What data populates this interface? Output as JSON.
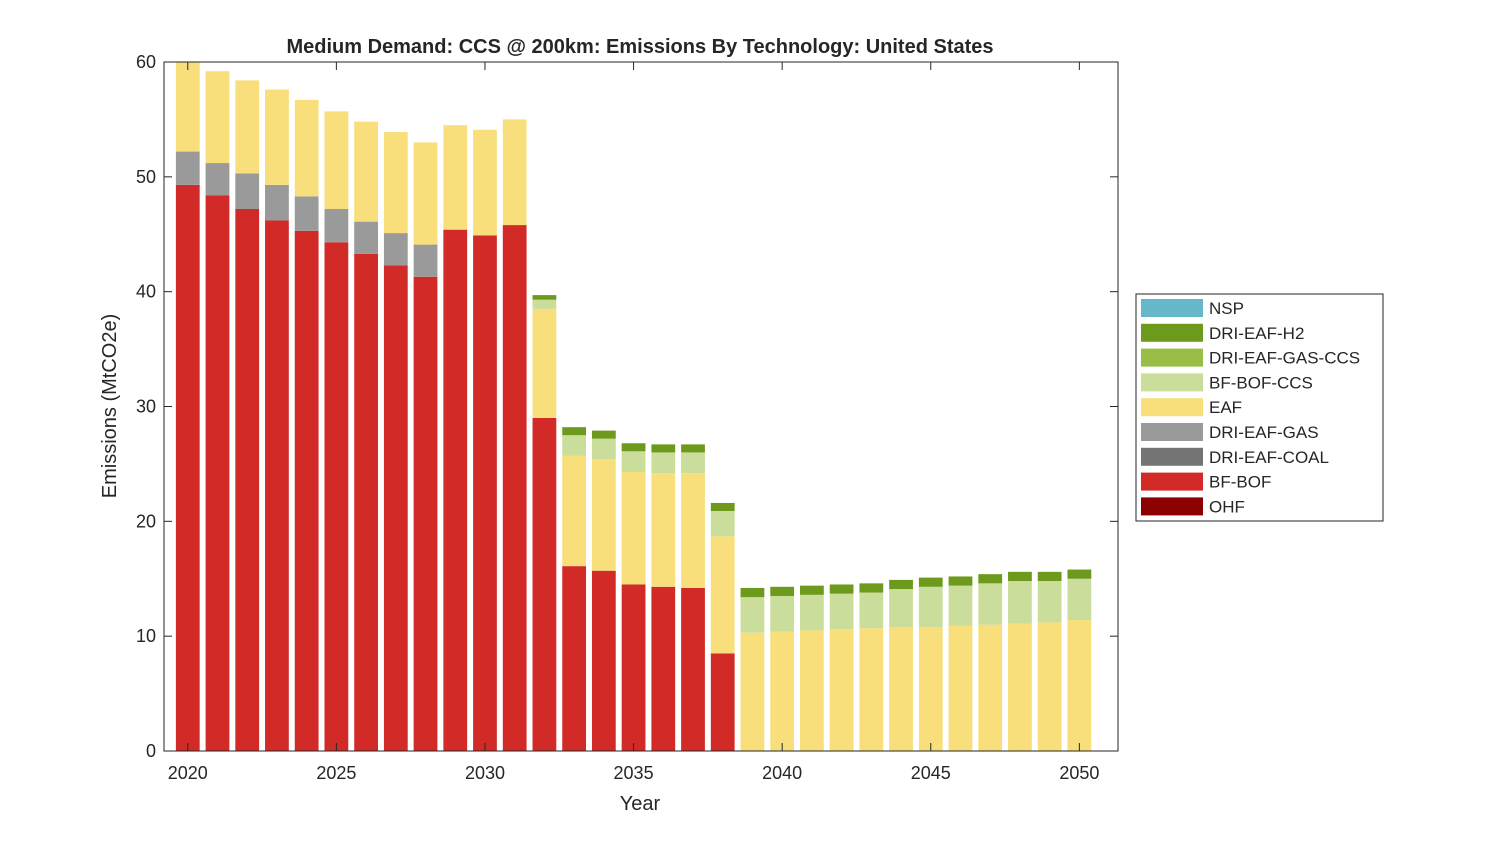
{
  "chart_data": {
    "type": "bar",
    "stacked": true,
    "title": "Medium Demand: CCS @ 200km: Emissions By Technology: United States",
    "xlabel": "Year",
    "ylabel": "Emissions (MtCO2e)",
    "ylim": [
      0,
      60
    ],
    "xlim": [
      2019.2,
      2051.3
    ],
    "xticks": [
      2020,
      2025,
      2030,
      2035,
      2040,
      2045,
      2050
    ],
    "xtick_labels": [
      "2020",
      "2025",
      "2030",
      "2035",
      "2040",
      "2045",
      "2050"
    ],
    "yticks": [
      0,
      10,
      20,
      30,
      40,
      50,
      60
    ],
    "ytick_labels": [
      "0",
      "10",
      "20",
      "30",
      "40",
      "50",
      "60"
    ],
    "grid": false,
    "legend_position": "outside-right",
    "categories": [
      2020,
      2021,
      2022,
      2023,
      2024,
      2025,
      2026,
      2027,
      2028,
      2029,
      2030,
      2031,
      2032,
      2033,
      2034,
      2035,
      2036,
      2037,
      2038,
      2039,
      2040,
      2041,
      2042,
      2043,
      2044,
      2045,
      2046,
      2047,
      2048,
      2049,
      2050
    ],
    "series": [
      {
        "name": "OHF",
        "color": "#8b0000",
        "values": [
          0,
          0,
          0,
          0,
          0,
          0,
          0,
          0,
          0,
          0,
          0,
          0,
          0,
          0,
          0,
          0,
          0,
          0,
          0,
          0,
          0,
          0,
          0,
          0,
          0,
          0,
          0,
          0,
          0,
          0,
          0
        ]
      },
      {
        "name": "BF-BOF",
        "color": "#d22b27",
        "values": [
          49.3,
          48.4,
          47.2,
          46.2,
          45.3,
          44.3,
          43.3,
          42.3,
          41.3,
          45.4,
          44.9,
          45.8,
          29.0,
          16.1,
          15.7,
          14.5,
          14.3,
          14.2,
          8.5,
          0,
          0,
          0,
          0,
          0,
          0,
          0,
          0,
          0,
          0,
          0,
          0
        ]
      },
      {
        "name": "DRI-EAF-COAL",
        "color": "#747474",
        "values": [
          0,
          0,
          0,
          0,
          0,
          0,
          0,
          0,
          0,
          0,
          0,
          0,
          0,
          0,
          0,
          0,
          0,
          0,
          0,
          0,
          0,
          0,
          0,
          0,
          0,
          0,
          0,
          0,
          0,
          0,
          0
        ]
      },
      {
        "name": "DRI-EAF-GAS",
        "color": "#9a9a9a",
        "values": [
          2.9,
          2.8,
          3.1,
          3.1,
          3.0,
          2.9,
          2.8,
          2.8,
          2.8,
          0,
          0,
          0,
          0,
          0,
          0,
          0,
          0,
          0,
          0,
          0,
          0,
          0,
          0,
          0,
          0,
          0,
          0,
          0,
          0,
          0,
          0
        ]
      },
      {
        "name": "EAF",
        "color": "#f8df7c",
        "values": [
          7.9,
          8.0,
          8.1,
          8.3,
          8.4,
          8.5,
          8.7,
          8.8,
          8.9,
          9.1,
          9.2,
          9.2,
          9.5,
          9.6,
          9.7,
          9.8,
          9.9,
          10.0,
          10.2,
          10.3,
          10.4,
          10.5,
          10.6,
          10.7,
          10.8,
          10.8,
          10.9,
          11.0,
          11.1,
          11.2,
          11.4
        ]
      },
      {
        "name": "BF-BOF-CCS",
        "color": "#cbdd9b",
        "values": [
          0,
          0,
          0,
          0,
          0,
          0,
          0,
          0,
          0,
          0,
          0,
          0,
          0.8,
          1.8,
          1.8,
          1.8,
          1.8,
          1.8,
          2.2,
          3.1,
          3.1,
          3.1,
          3.1,
          3.1,
          3.3,
          3.5,
          3.5,
          3.6,
          3.7,
          3.6,
          3.6
        ]
      },
      {
        "name": "DRI-EAF-GAS-CCS",
        "color": "#98be48",
        "values": [
          0,
          0,
          0,
          0,
          0,
          0,
          0,
          0,
          0,
          0,
          0,
          0,
          0,
          0,
          0,
          0,
          0,
          0,
          0,
          0,
          0,
          0,
          0,
          0,
          0,
          0,
          0,
          0,
          0,
          0,
          0
        ]
      },
      {
        "name": "DRI-EAF-H2",
        "color": "#6d9a1c",
        "values": [
          0,
          0,
          0,
          0,
          0,
          0,
          0,
          0,
          0,
          0,
          0,
          0,
          0.4,
          0.7,
          0.7,
          0.7,
          0.7,
          0.7,
          0.7,
          0.8,
          0.8,
          0.8,
          0.8,
          0.8,
          0.8,
          0.8,
          0.8,
          0.8,
          0.8,
          0.8,
          0.8
        ]
      },
      {
        "name": "NSP",
        "color": "#66b8c8",
        "values": [
          0,
          0,
          0,
          0,
          0,
          0,
          0,
          0,
          0,
          0,
          0,
          0,
          0,
          0,
          0,
          0,
          0,
          0,
          0,
          0,
          0,
          0,
          0,
          0,
          0,
          0,
          0,
          0,
          0,
          0,
          0
        ]
      }
    ],
    "legend_order": [
      "NSP",
      "DRI-EAF-H2",
      "DRI-EAF-GAS-CCS",
      "BF-BOF-CCS",
      "EAF",
      "DRI-EAF-GAS",
      "DRI-EAF-COAL",
      "BF-BOF",
      "OHF"
    ]
  }
}
